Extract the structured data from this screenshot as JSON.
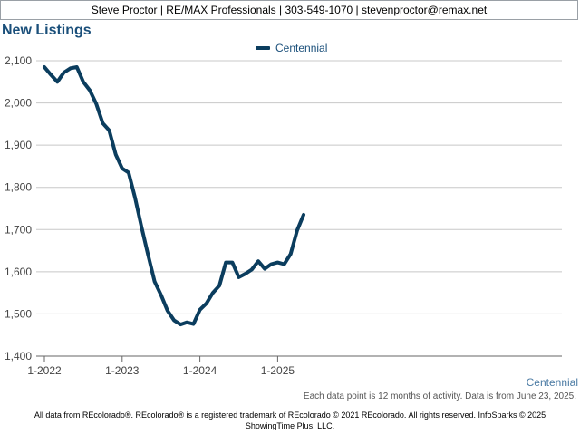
{
  "header": {
    "text": "Steve Proctor | RE/MAX Professionals | 303-549-1070 | stevenproctor@remax.net"
  },
  "chart_data": {
    "type": "line",
    "title": "New Listings",
    "xlabel": "Centennial",
    "ylabel": "",
    "ylim": [
      1400,
      2100
    ],
    "yticks": [
      1400,
      1500,
      1600,
      1700,
      1800,
      1900,
      2000,
      2100
    ],
    "ytick_labels": [
      "1,400",
      "1,500",
      "1,600",
      "1,700",
      "1,800",
      "1,900",
      "2,000",
      "2,100"
    ],
    "xticks": [
      "1-2022",
      "1-2023",
      "1-2024",
      "1-2025"
    ],
    "grid": true,
    "legend_position": "top-center",
    "series": [
      {
        "name": "Centennial",
        "color": "#0b3d5e",
        "values": [
          2085,
          2067,
          2050,
          2072,
          2082,
          2085,
          2050,
          2030,
          1998,
          1952,
          1935,
          1878,
          1845,
          1835,
          1775,
          1705,
          1640,
          1577,
          1545,
          1508,
          1485,
          1475,
          1480,
          1476,
          1510,
          1525,
          1550,
          1567,
          1622,
          1622,
          1587,
          1595,
          1605,
          1625,
          1607,
          1618,
          1622,
          1618,
          1642,
          1698,
          1735
        ]
      }
    ],
    "x_start": "2022-01"
  },
  "footnote": "Each data point is 12 months of activity. Data is from June 23, 2025.",
  "footer": {
    "line1": "All data from REcolorado®. REcolorado® is a registered trademark of REcolorado © 2021 REcolorado. All rights reserved. InfoSparks © 2025",
    "line2": "ShowingTime Plus, LLC."
  }
}
